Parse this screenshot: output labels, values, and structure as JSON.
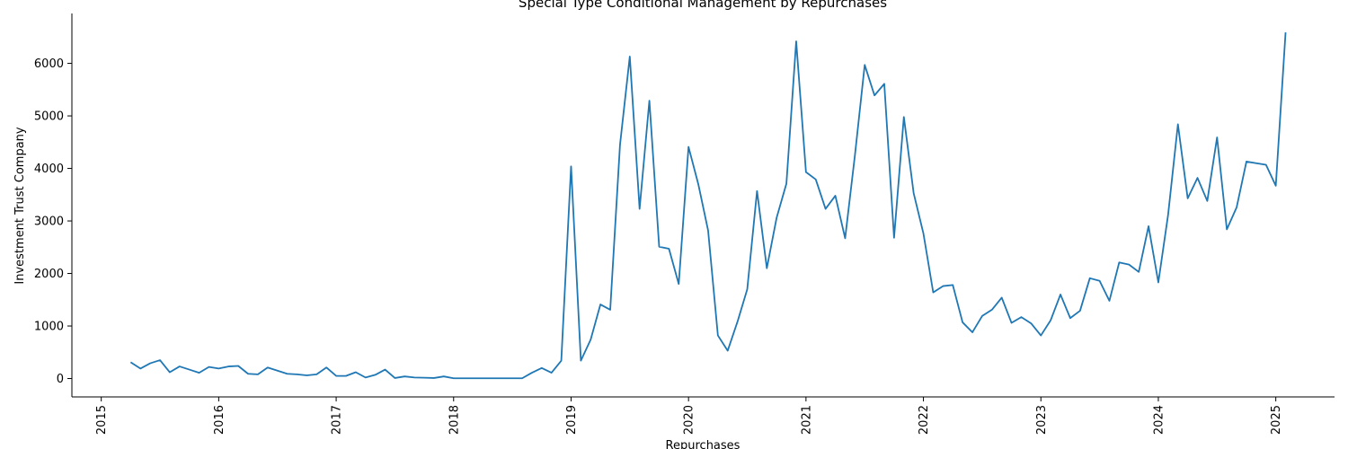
{
  "chart_data": {
    "type": "line",
    "title": "Special Type Conditional Management by Repurchases",
    "xlabel": "Repurchases",
    "ylabel": "Investment Trust Company",
    "xlim": [
      "2014-10-01",
      "2025-07-01"
    ],
    "ylim": [
      -350,
      6950
    ],
    "x_ticks": [
      "2015",
      "2016",
      "2017",
      "2018",
      "2019",
      "2020",
      "2021",
      "2022",
      "2023",
      "2024",
      "2025"
    ],
    "y_ticks": [
      "0",
      "1000",
      "2000",
      "3000",
      "4000",
      "5000",
      "6000"
    ],
    "grid": false,
    "color": "#1f77b4",
    "series": [
      {
        "x": [
          "2015-04",
          "2015-05",
          "2015-06",
          "2015-07",
          "2015-08",
          "2015-09",
          "2015-10",
          "2015-11",
          "2015-12",
          "2016-01",
          "2016-02",
          "2016-03",
          "2016-04",
          "2016-05",
          "2016-06",
          "2016-07",
          "2016-08",
          "2016-09",
          "2016-10",
          "2016-11",
          "2016-12",
          "2017-01",
          "2017-02",
          "2017-03",
          "2017-04",
          "2017-05",
          "2017-06",
          "2017-07",
          "2017-08",
          "2017-09",
          "2017-10",
          "2017-11",
          "2017-12",
          "2018-01",
          "2018-02",
          "2018-03",
          "2018-04",
          "2018-05",
          "2018-06",
          "2018-07",
          "2018-08",
          "2018-09",
          "2018-10",
          "2018-11",
          "2018-12",
          "2019-01",
          "2019-02",
          "2019-03",
          "2019-04",
          "2019-05",
          "2019-06",
          "2019-07",
          "2019-08",
          "2019-09",
          "2019-10",
          "2019-11",
          "2019-12",
          "2020-01",
          "2020-02",
          "2020-03",
          "2020-04",
          "2020-05",
          "2020-06",
          "2020-07",
          "2020-08",
          "2020-09",
          "2020-10",
          "2020-11",
          "2020-12",
          "2021-01",
          "2021-02",
          "2021-03",
          "2021-04",
          "2021-05",
          "2021-06",
          "2021-07",
          "2021-08",
          "2021-09",
          "2021-10",
          "2021-11",
          "2021-12",
          "2022-01",
          "2022-02",
          "2022-03",
          "2022-04",
          "2022-05",
          "2022-06",
          "2022-07",
          "2022-08",
          "2022-09",
          "2022-10",
          "2022-11",
          "2022-12",
          "2023-01",
          "2023-02",
          "2023-03",
          "2023-04",
          "2023-05",
          "2023-06",
          "2023-07",
          "2023-08",
          "2023-09",
          "2023-10",
          "2023-11",
          "2023-12",
          "2024-01",
          "2024-02",
          "2024-03",
          "2024-04",
          "2024-05",
          "2024-06",
          "2024-07",
          "2024-08",
          "2024-09",
          "2024-10",
          "2024-11",
          "2024-12",
          "2025-01",
          "2025-02"
        ],
        "values": [
          310,
          190,
          290,
          350,
          120,
          230,
          170,
          110,
          220,
          190,
          230,
          240,
          90,
          80,
          210,
          150,
          90,
          80,
          60,
          80,
          210,
          50,
          50,
          120,
          20,
          70,
          170,
          10,
          40,
          20,
          15,
          10,
          40,
          5,
          5,
          5,
          5,
          5,
          5,
          5,
          5,
          110,
          200,
          110,
          340,
          4040,
          340,
          740,
          1410,
          1310,
          4450,
          6130,
          3230,
          5290,
          2510,
          2470,
          1800,
          4410,
          3700,
          2820,
          820,
          530,
          1080,
          1700,
          3570,
          2100,
          3060,
          3710,
          6420,
          3930,
          3790,
          3230,
          3480,
          2670,
          4250,
          5970,
          5390,
          5610,
          2680,
          4980,
          3530,
          2760,
          1640,
          1760,
          1780,
          1070,
          880,
          1190,
          1310,
          1540,
          1060,
          1170,
          1050,
          820,
          1110,
          1600,
          1150,
          1290,
          1910,
          1860,
          1480,
          2210,
          2170,
          2030,
          2900,
          1830,
          3120,
          4840,
          3430,
          3820,
          3380,
          4590,
          2840,
          3260,
          4130,
          4100,
          4070,
          3670,
          6590
        ]
      }
    ]
  }
}
